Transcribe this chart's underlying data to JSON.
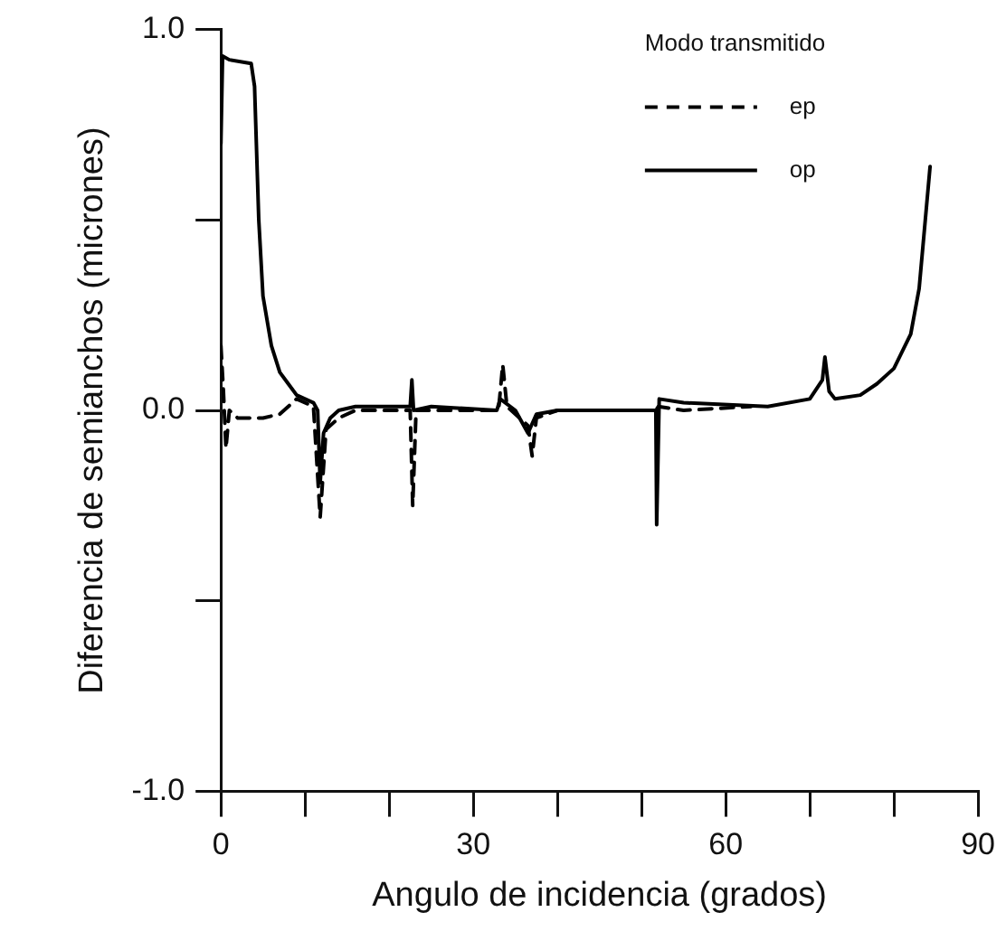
{
  "chart_data": {
    "type": "line",
    "xlabel": "Angulo de incidencia (grados)",
    "ylabel": "Diferencia de semianchos (micrones)",
    "legend_title": "Modo transmitido",
    "legend": "top right",
    "grid": false,
    "marker": "none",
    "xlim": [
      0,
      90
    ],
    "xticks": [
      0,
      {
        "value": 10,
        "label": null
      },
      {
        "value": 20,
        "label": null
      },
      30,
      {
        "value": 40,
        "label": null
      },
      {
        "value": 50,
        "label": null
      },
      60,
      {
        "value": 70,
        "label": null
      },
      {
        "value": 80,
        "label": null
      },
      90
    ],
    "ylim": [
      -1,
      1
    ],
    "yticks": [
      {
        "value": -1,
        "label": "-1.0"
      },
      {
        "value": -0.5,
        "label": null
      },
      {
        "value": 0,
        "label": "0.0"
      },
      {
        "value": 0.5,
        "label": null
      },
      {
        "value": 1,
        "label": "1.0"
      }
    ],
    "series": [
      {
        "name": "ep",
        "color": "#000000",
        "line_style": "dashed",
        "x": [
          0,
          0.3,
          0.6,
          1,
          2,
          5,
          7,
          9,
          11,
          11.8,
          12.5,
          14,
          16,
          22.5,
          22.8,
          23.2,
          33,
          33.5,
          34,
          36.5,
          37,
          37.5,
          40,
          51.7,
          52,
          55,
          63
        ],
        "values": [
          0.17,
          0.05,
          -0.1,
          0,
          -0.02,
          -0.02,
          -0.01,
          0.03,
          0.01,
          -0.28,
          -0.05,
          -0.02,
          0,
          0,
          -0.25,
          0,
          0,
          0.12,
          0.01,
          -0.04,
          -0.12,
          -0.02,
          0,
          0,
          0.01,
          0,
          0.01
        ]
      },
      {
        "name": "op",
        "color": "#000000",
        "line_style": "solid",
        "x": [
          0,
          0.2,
          1,
          3.6,
          4,
          4.5,
          5,
          6,
          7,
          8,
          9,
          10,
          11,
          11.5,
          11.8,
          12.2,
          13,
          14,
          16,
          22.5,
          22.7,
          22.9,
          25,
          32.8,
          33.2,
          35,
          36.5,
          37.5,
          40,
          51.7,
          51.8,
          52.1,
          55,
          65,
          70,
          71.5,
          71.8,
          72.3,
          73,
          76,
          78,
          80,
          82,
          83,
          84.3
        ],
        "values": [
          0.7,
          0.93,
          0.92,
          0.91,
          0.85,
          0.5,
          0.3,
          0.17,
          0.1,
          0.07,
          0.04,
          0.03,
          0.02,
          0,
          -0.19,
          -0.06,
          -0.02,
          0,
          0.01,
          0.01,
          0.08,
          0,
          0.01,
          0,
          0.03,
          0,
          -0.06,
          -0.01,
          0,
          0,
          -0.3,
          0.03,
          0.02,
          0.01,
          0.03,
          0.08,
          0.14,
          0.05,
          0.03,
          0.04,
          0.07,
          0.11,
          0.2,
          0.32,
          0.64
        ]
      }
    ]
  }
}
